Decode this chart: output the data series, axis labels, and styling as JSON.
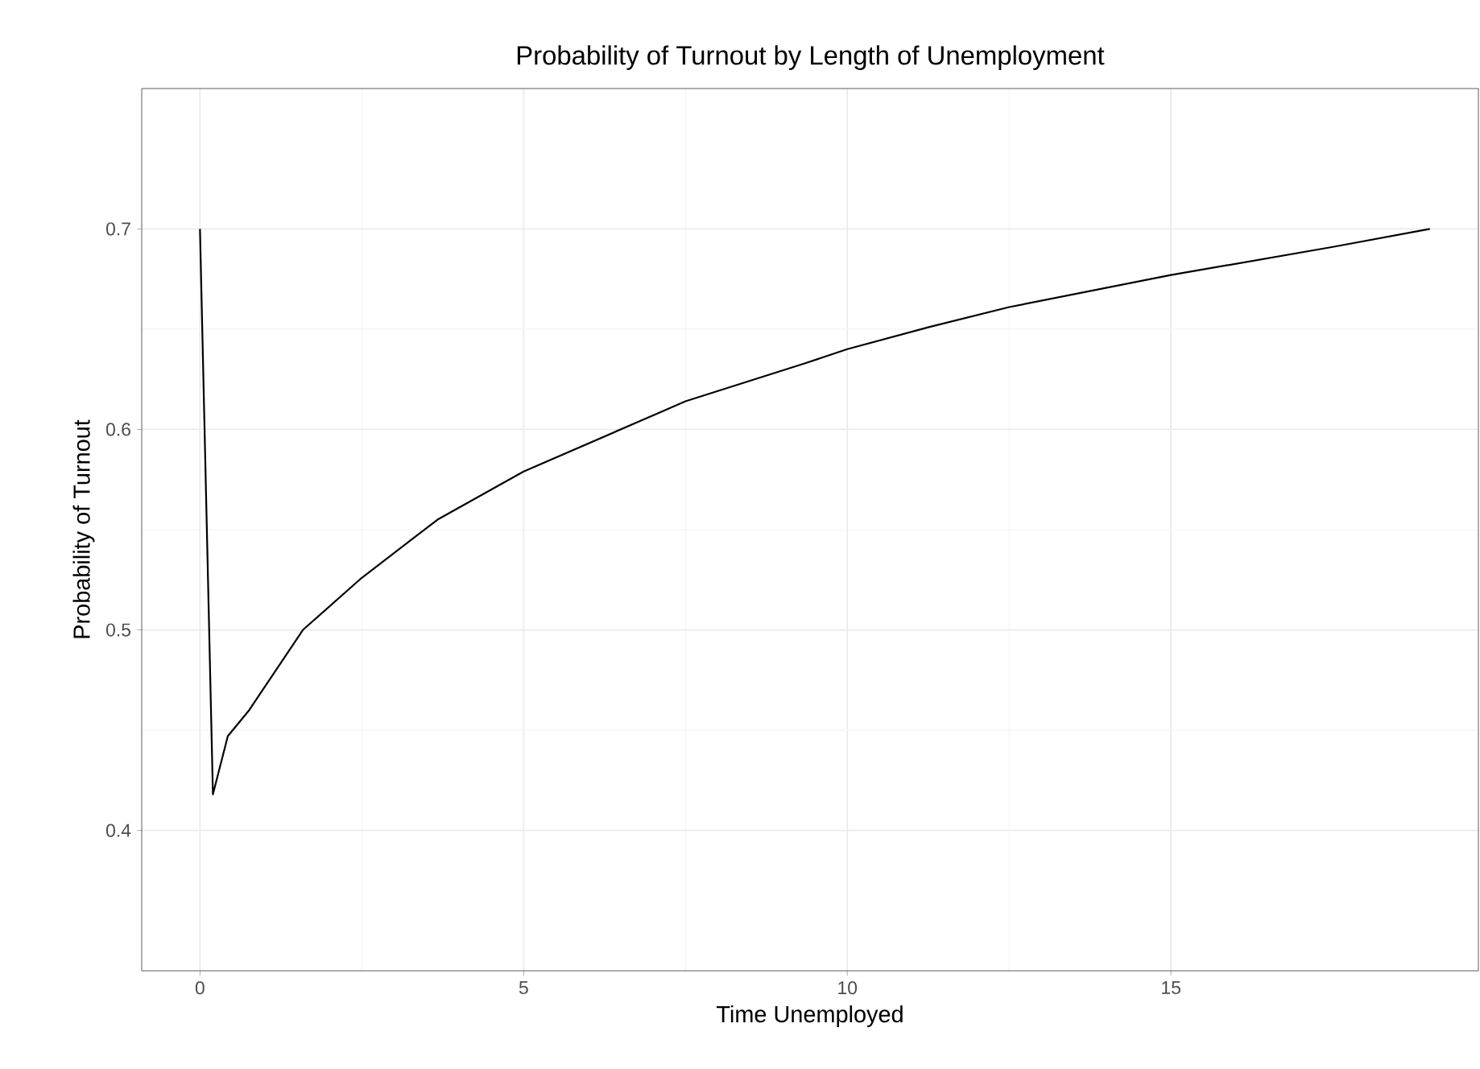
{
  "chart_data": {
    "type": "line",
    "title": "Probability of Turnout by Length of Unemployment",
    "xlabel": "Time Unemployed",
    "ylabel": "Probability of Turnout",
    "x": [
      0,
      0.2,
      0.43,
      0.76,
      1.59,
      2.5,
      3.67,
      5.0,
      7.5,
      9.35,
      10,
      11.26,
      12.5,
      15,
      17.5,
      19.0
    ],
    "series": [
      {
        "color": "#000000",
        "values": [
          0.7,
          0.418,
          0.447,
          0.46,
          0.5,
          0.526,
          0.555,
          0.579,
          0.614,
          0.633,
          0.64,
          0.651,
          0.661,
          0.677,
          0.691,
          0.7
        ]
      }
    ],
    "xlim": [
      -0.9,
      19.75
    ],
    "ylim": [
      0.33,
      0.77
    ],
    "xticks": [
      0,
      5,
      10,
      15
    ],
    "yticks": [
      0.4,
      0.5,
      0.6,
      0.7
    ],
    "grid": true,
    "line_style": "solid"
  }
}
